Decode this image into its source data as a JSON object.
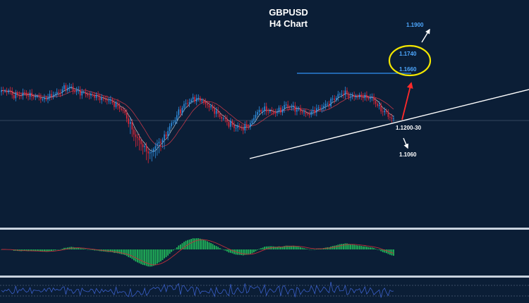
{
  "chart_data": {
    "type": "candlestick",
    "title": "GBPUSD",
    "subtitle": "H4 Chart",
    "colors": {
      "background": "#0b1e36",
      "bull_candle": "#2f8fe0",
      "bear_candle": "#e0283a",
      "ma_fast": "#e8e8e8",
      "ma_slow": "#d23a4a",
      "resistance": "#2a7fd6",
      "trendline": "#ffffff",
      "target_up": "#4ea8ff",
      "target_down": "#ffffff",
      "highlight_ellipse": "#f2e600",
      "arrow_up": "#ff2a2a",
      "histogram": "#22b85a",
      "signal_line": "#c0303a",
      "oscillator": "#3a5fc8"
    },
    "annotations": {
      "target_1190": "1.1900",
      "target_1174": "1.1740",
      "target_1166": "1.1660",
      "support_zone": "1.1200-30",
      "target_1106": "1.1060"
    },
    "price_path": [
      1.164,
      1.164,
      1.159,
      1.16,
      1.162,
      1.158,
      1.156,
      1.159,
      1.164,
      1.17,
      1.171,
      1.162,
      1.16,
      1.156,
      1.153,
      1.15,
      1.145,
      1.138,
      1.12,
      1.096,
      1.083,
      1.07,
      1.086,
      1.095,
      1.115,
      1.132,
      1.145,
      1.152,
      1.15,
      1.142,
      1.133,
      1.124,
      1.115,
      1.111,
      1.109,
      1.117,
      1.135,
      1.14,
      1.133,
      1.136,
      1.142,
      1.139,
      1.132,
      1.128,
      1.133,
      1.14,
      1.145,
      1.158,
      1.163,
      1.16,
      1.158,
      1.16,
      1.155,
      1.142,
      1.13,
      1.12
    ]
  }
}
